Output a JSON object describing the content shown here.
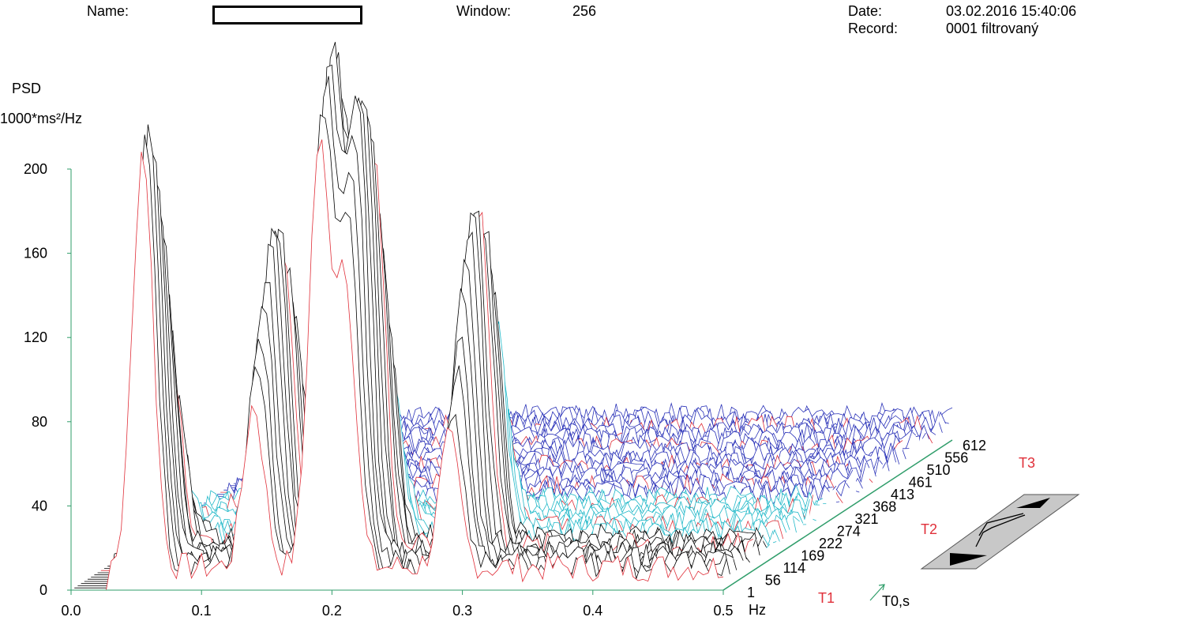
{
  "header": {
    "name_label": "Name:",
    "window_label": "Window:",
    "window_value": "256",
    "date_label": "Date:",
    "date_value": "03.02.2016 15:40:06",
    "record_label": "Record:",
    "record_value": "0001 filtrovaný"
  },
  "chart_data": {
    "type": "area",
    "description_style": "3D waterfall PSD spectrum",
    "ylabel_line1": "PSD",
    "ylabel_line2": "1000*ms²/Hz",
    "xlabel": "Hz",
    "time_axis_label": "T0,s",
    "xlim": [
      0.0,
      0.5
    ],
    "ylim": [
      0,
      200
    ],
    "x_ticks": [
      "0.0",
      "0.1",
      "0.2",
      "0.3",
      "0.4",
      "0.5"
    ],
    "y_ticks": [
      "0",
      "40",
      "80",
      "120",
      "160",
      "200"
    ],
    "time_ticks": [
      "1",
      "56",
      "114",
      "169",
      "222",
      "274",
      "321",
      "368",
      "413",
      "461",
      "510",
      "556",
      "612"
    ],
    "segment_labels": [
      "T1",
      "T2",
      "T3"
    ],
    "peaks": [
      {
        "freq": 0.055,
        "psd": 205
      },
      {
        "freq": 0.19,
        "psd": 235
      },
      {
        "freq": 0.21,
        "psd": 215
      },
      {
        "freq": 0.29,
        "psd": 165
      },
      {
        "freq": 0.14,
        "psd": 155
      }
    ],
    "colors": {
      "axis": "#2f9d6a",
      "high": "#000000",
      "mid": "#20b8c8",
      "low": "#2a32b8",
      "accent": "#e0303a",
      "peak": "#8b1a8b"
    }
  }
}
